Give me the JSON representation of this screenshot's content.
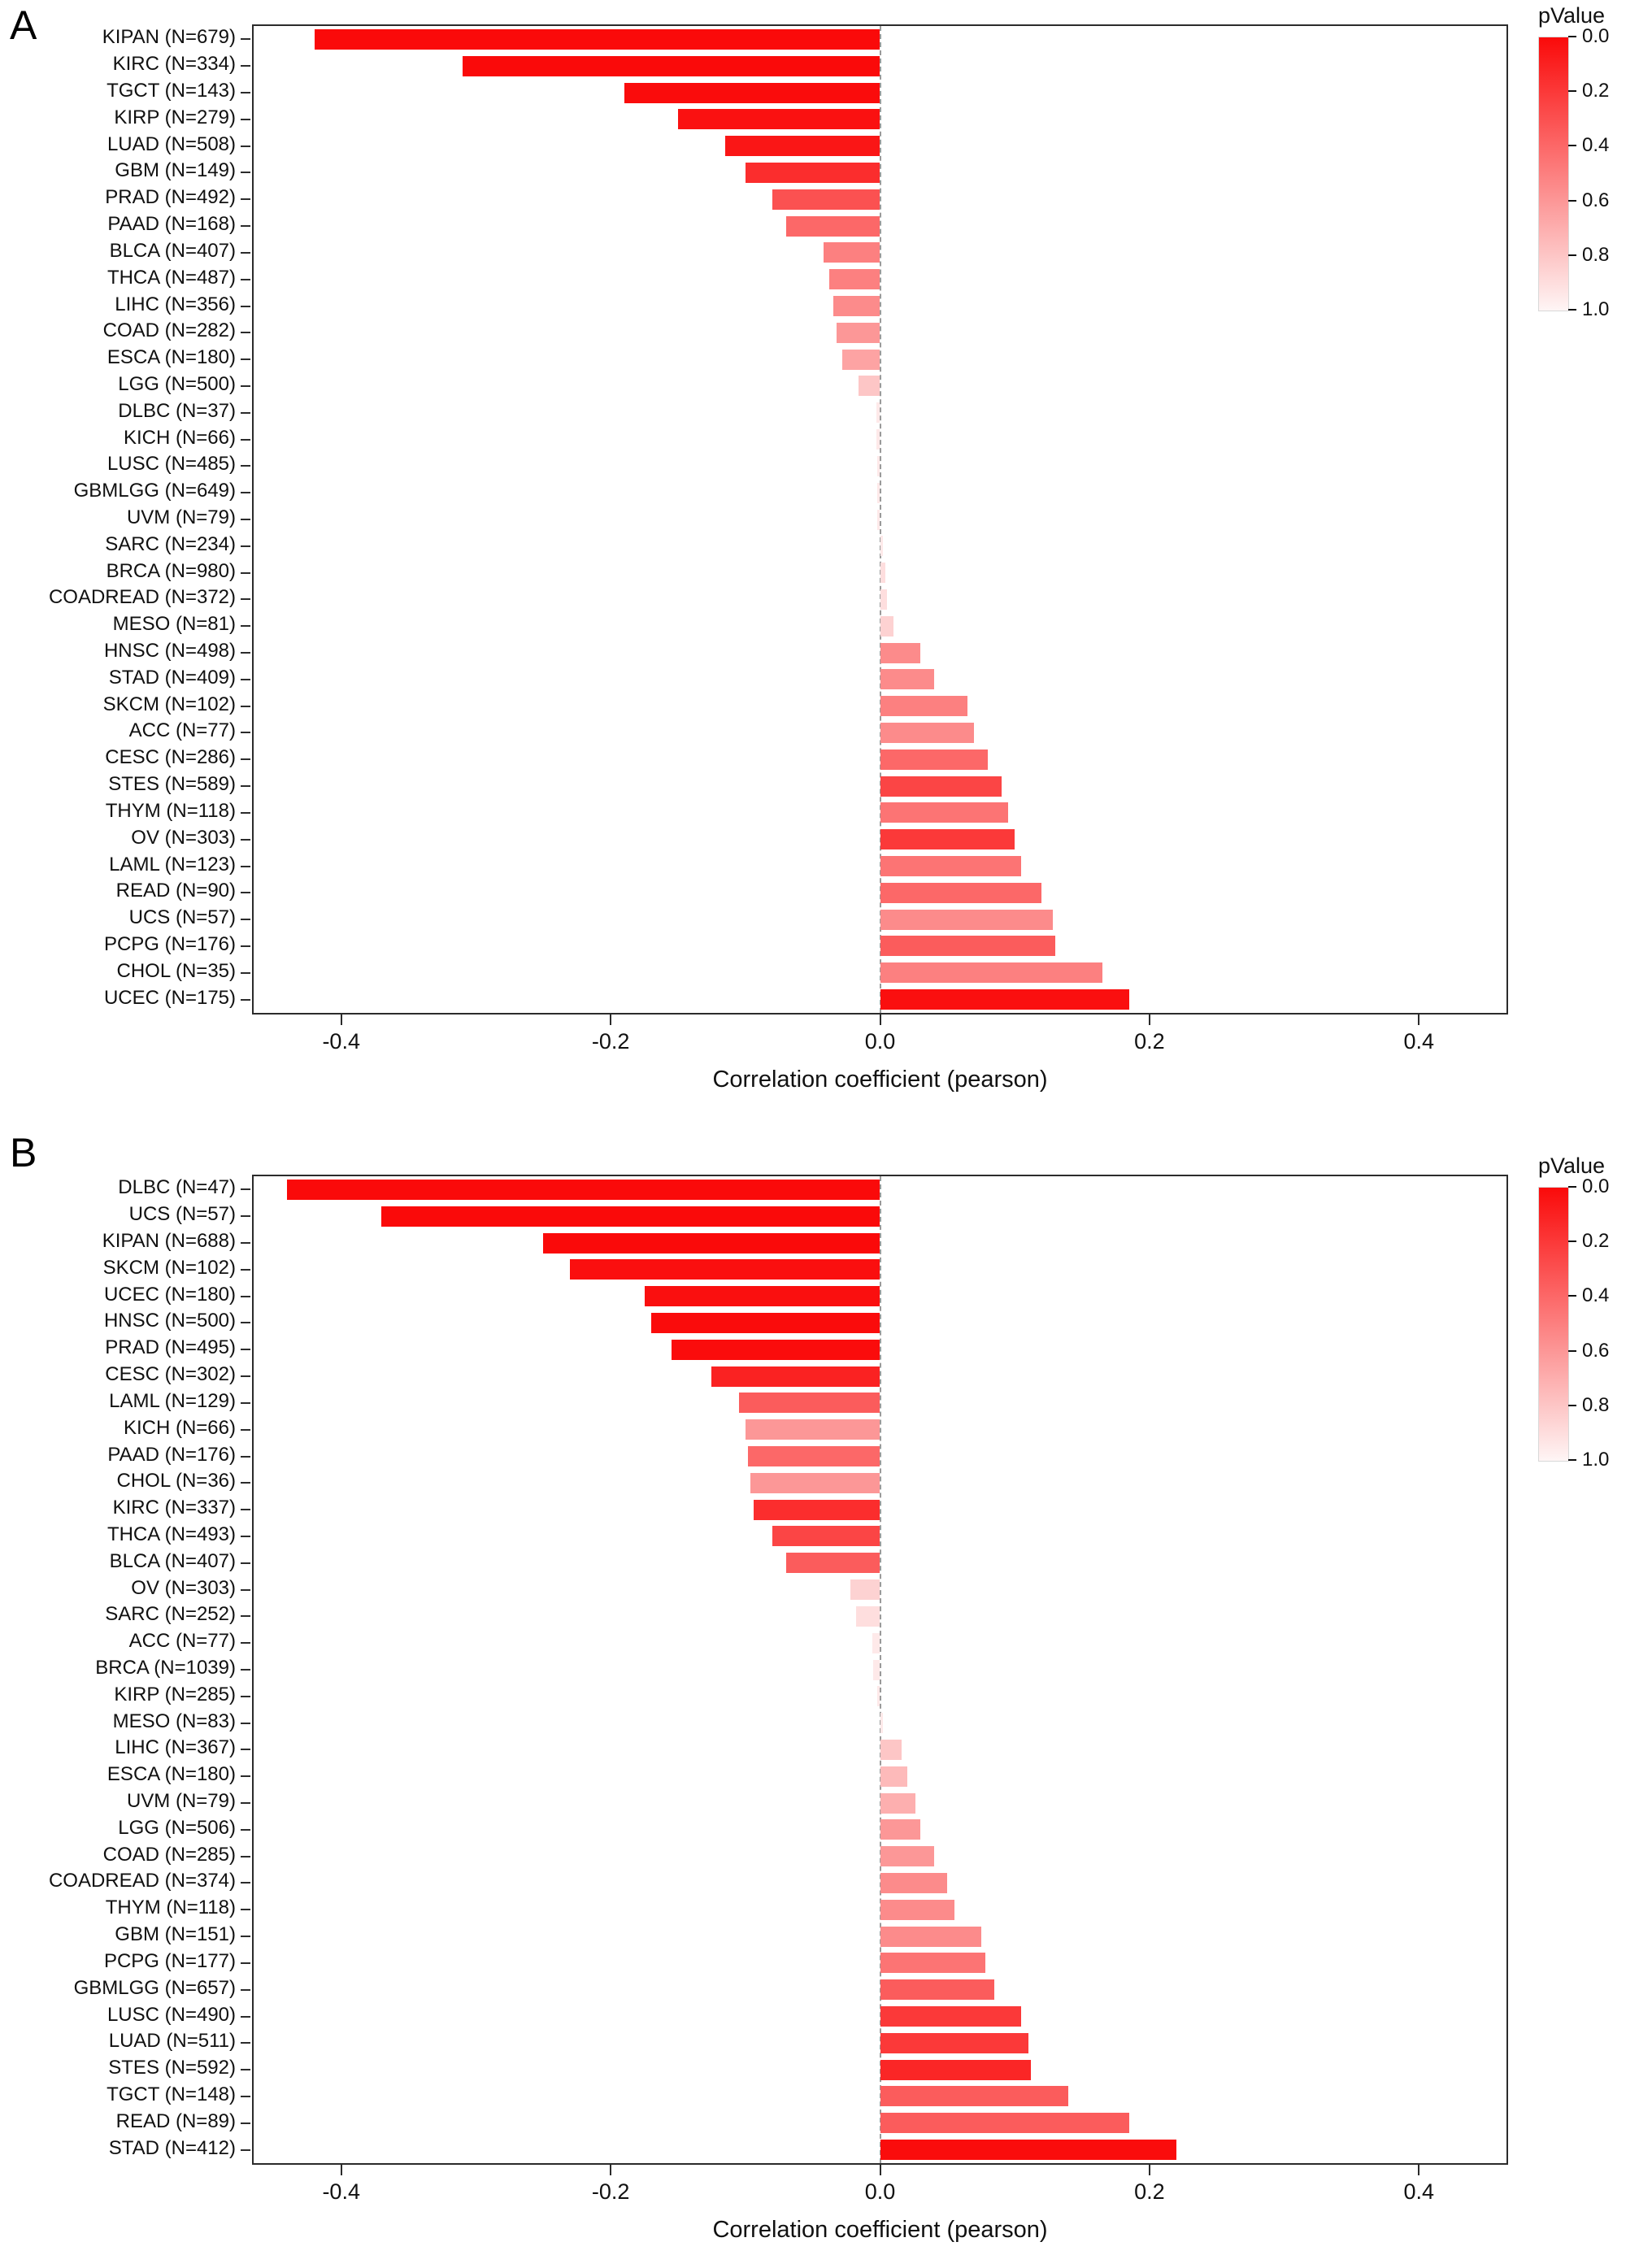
{
  "chart_data": [
    {
      "type": "bar",
      "panel_label": "A",
      "orientation": "horizontal",
      "xlabel": "Correlation coefficient (pearson)",
      "xlim": [
        -0.465,
        0.465
      ],
      "x_ticks": [
        -0.4,
        -0.2,
        0.0,
        0.2,
        0.4
      ],
      "x_tick_labels": [
        "-0.4",
        "-0.2",
        "0.0",
        "0.2",
        "0.4"
      ],
      "grid": false,
      "legend": {
        "title": "pValue",
        "position": "right-top",
        "tick_labels": [
          "0.0",
          "0.2",
          "0.4",
          "0.6",
          "0.8",
          "1.0"
        ],
        "low_color": "#fa0a0a",
        "high_color": "#fef5f5"
      },
      "bars": [
        {
          "label": "KIPAN (N=679)",
          "value": -0.42,
          "pvalue": 0.0
        },
        {
          "label": "KIRC (N=334)",
          "value": -0.31,
          "pvalue": 0.0
        },
        {
          "label": "TGCT (N=143)",
          "value": -0.19,
          "pvalue": 0.01
        },
        {
          "label": "KIRP (N=279)",
          "value": -0.15,
          "pvalue": 0.03
        },
        {
          "label": "LUAD (N=508)",
          "value": -0.115,
          "pvalue": 0.05
        },
        {
          "label": "GBM (N=149)",
          "value": -0.1,
          "pvalue": 0.15
        },
        {
          "label": "PRAD (N=492)",
          "value": -0.08,
          "pvalue": 0.3
        },
        {
          "label": "PAAD (N=168)",
          "value": -0.07,
          "pvalue": 0.4
        },
        {
          "label": "BLCA (N=407)",
          "value": -0.042,
          "pvalue": 0.5
        },
        {
          "label": "THCA (N=487)",
          "value": -0.038,
          "pvalue": 0.5
        },
        {
          "label": "LIHC (N=356)",
          "value": -0.035,
          "pvalue": 0.55
        },
        {
          "label": "COAD (N=282)",
          "value": -0.032,
          "pvalue": 0.6
        },
        {
          "label": "ESCA (N=180)",
          "value": -0.028,
          "pvalue": 0.65
        },
        {
          "label": "LGG (N=500)",
          "value": -0.016,
          "pvalue": 0.8
        },
        {
          "label": "DLBC (N=37)",
          "value": -0.003,
          "pvalue": 0.95
        },
        {
          "label": "KICH (N=66)",
          "value": -0.003,
          "pvalue": 0.95
        },
        {
          "label": "LUSC (N=485)",
          "value": -0.002,
          "pvalue": 0.95
        },
        {
          "label": "GBMLGG (N=649)",
          "value": -0.002,
          "pvalue": 0.95
        },
        {
          "label": "UVM (N=79)",
          "value": -0.002,
          "pvalue": 0.95
        },
        {
          "label": "SARC (N=234)",
          "value": 0.002,
          "pvalue": 0.95
        },
        {
          "label": "BRCA (N=980)",
          "value": 0.004,
          "pvalue": 0.9
        },
        {
          "label": "COADREAD (N=372)",
          "value": 0.005,
          "pvalue": 0.9
        },
        {
          "label": "MESO (N=81)",
          "value": 0.01,
          "pvalue": 0.85
        },
        {
          "label": "HNSC (N=498)",
          "value": 0.03,
          "pvalue": 0.55
        },
        {
          "label": "STAD (N=409)",
          "value": 0.04,
          "pvalue": 0.55
        },
        {
          "label": "SKCM (N=102)",
          "value": 0.065,
          "pvalue": 0.5
        },
        {
          "label": "ACC (N=77)",
          "value": 0.07,
          "pvalue": 0.55
        },
        {
          "label": "CESC (N=286)",
          "value": 0.08,
          "pvalue": 0.4
        },
        {
          "label": "STES (N=589)",
          "value": 0.09,
          "pvalue": 0.25
        },
        {
          "label": "THYM (N=118)",
          "value": 0.095,
          "pvalue": 0.45
        },
        {
          "label": "OV (N=303)",
          "value": 0.1,
          "pvalue": 0.2
        },
        {
          "label": "LAML (N=123)",
          "value": 0.105,
          "pvalue": 0.45
        },
        {
          "label": "READ (N=90)",
          "value": 0.12,
          "pvalue": 0.4
        },
        {
          "label": "UCS (N=57)",
          "value": 0.128,
          "pvalue": 0.55
        },
        {
          "label": "PCPG (N=176)",
          "value": 0.13,
          "pvalue": 0.35
        },
        {
          "label": "CHOL (N=35)",
          "value": 0.165,
          "pvalue": 0.5
        },
        {
          "label": "UCEC (N=175)",
          "value": 0.185,
          "pvalue": 0.02
        }
      ]
    },
    {
      "type": "bar",
      "panel_label": "B",
      "orientation": "horizontal",
      "xlabel": "Correlation coefficient (pearson)",
      "xlim": [
        -0.465,
        0.465
      ],
      "x_ticks": [
        -0.4,
        -0.2,
        0.0,
        0.2,
        0.4
      ],
      "x_tick_labels": [
        "-0.4",
        "-0.2",
        "0.0",
        "0.2",
        "0.4"
      ],
      "grid": false,
      "legend": {
        "title": "pValue",
        "position": "right-top",
        "tick_labels": [
          "0.0",
          "0.2",
          "0.4",
          "0.6",
          "0.8",
          "1.0"
        ],
        "low_color": "#fa0a0a",
        "high_color": "#fef5f5"
      },
      "bars": [
        {
          "label": "DLBC (N=47)",
          "value": -0.44,
          "pvalue": 0.0
        },
        {
          "label": "UCS (N=57)",
          "value": -0.37,
          "pvalue": 0.0
        },
        {
          "label": "KIPAN (N=688)",
          "value": -0.25,
          "pvalue": 0.0
        },
        {
          "label": "SKCM (N=102)",
          "value": -0.23,
          "pvalue": 0.02
        },
        {
          "label": "UCEC (N=180)",
          "value": -0.175,
          "pvalue": 0.02
        },
        {
          "label": "HNSC (N=500)",
          "value": -0.17,
          "pvalue": 0.01
        },
        {
          "label": "PRAD (N=495)",
          "value": -0.155,
          "pvalue": 0.01
        },
        {
          "label": "CESC (N=302)",
          "value": -0.125,
          "pvalue": 0.1
        },
        {
          "label": "LAML (N=129)",
          "value": -0.105,
          "pvalue": 0.35
        },
        {
          "label": "KICH (N=66)",
          "value": -0.1,
          "pvalue": 0.6
        },
        {
          "label": "PAAD (N=176)",
          "value": -0.098,
          "pvalue": 0.4
        },
        {
          "label": "CHOL (N=36)",
          "value": -0.096,
          "pvalue": 0.6
        },
        {
          "label": "KIRC (N=337)",
          "value": -0.094,
          "pvalue": 0.15
        },
        {
          "label": "THCA (N=493)",
          "value": -0.08,
          "pvalue": 0.25
        },
        {
          "label": "BLCA (N=407)",
          "value": -0.07,
          "pvalue": 0.35
        },
        {
          "label": "OV (N=303)",
          "value": -0.022,
          "pvalue": 0.85
        },
        {
          "label": "SARC (N=252)",
          "value": -0.018,
          "pvalue": 0.9
        },
        {
          "label": "ACC (N=77)",
          "value": -0.006,
          "pvalue": 0.95
        },
        {
          "label": "BRCA (N=1039)",
          "value": -0.005,
          "pvalue": 0.95
        },
        {
          "label": "KIRP (N=285)",
          "value": -0.002,
          "pvalue": 0.95
        },
        {
          "label": "MESO (N=83)",
          "value": 0.002,
          "pvalue": 0.95
        },
        {
          "label": "LIHC (N=367)",
          "value": 0.016,
          "pvalue": 0.8
        },
        {
          "label": "ESCA (N=180)",
          "value": 0.02,
          "pvalue": 0.75
        },
        {
          "label": "UVM (N=79)",
          "value": 0.026,
          "pvalue": 0.7
        },
        {
          "label": "LGG (N=506)",
          "value": 0.03,
          "pvalue": 0.6
        },
        {
          "label": "COAD (N=285)",
          "value": 0.04,
          "pvalue": 0.6
        },
        {
          "label": "COADREAD (N=374)",
          "value": 0.05,
          "pvalue": 0.55
        },
        {
          "label": "THYM (N=118)",
          "value": 0.055,
          "pvalue": 0.55
        },
        {
          "label": "GBM (N=151)",
          "value": 0.075,
          "pvalue": 0.55
        },
        {
          "label": "PCPG (N=177)",
          "value": 0.078,
          "pvalue": 0.45
        },
        {
          "label": "GBMLGG (N=657)",
          "value": 0.085,
          "pvalue": 0.35
        },
        {
          "label": "LUSC (N=490)",
          "value": 0.105,
          "pvalue": 0.2
        },
        {
          "label": "LUAD (N=511)",
          "value": 0.11,
          "pvalue": 0.2
        },
        {
          "label": "STES (N=592)",
          "value": 0.112,
          "pvalue": 0.12
        },
        {
          "label": "TGCT (N=148)",
          "value": 0.14,
          "pvalue": 0.35
        },
        {
          "label": "READ (N=89)",
          "value": 0.185,
          "pvalue": 0.35
        },
        {
          "label": "STAD (N=412)",
          "value": 0.22,
          "pvalue": 0.01
        }
      ]
    }
  ]
}
